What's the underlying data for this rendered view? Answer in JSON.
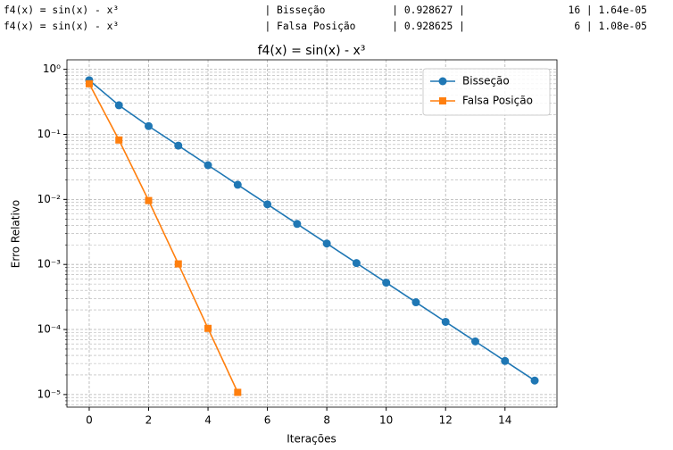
{
  "header": {
    "lines": [
      "f4(x) = sin(x) - x³                        | Bisseção           | 0.928627 |                 16 | 1.64e-05",
      "f4(x) = sin(x) - x³                        | Falsa Posição      | 0.928625 |                  6 | 1.08e-05"
    ]
  },
  "chart_data": {
    "type": "line",
    "title": "f4(x) = sin(x) - x³",
    "xlabel": "Iterações",
    "ylabel": "Erro Relativo",
    "yscale": "log",
    "grid": true,
    "legend": "upper right",
    "xlim": [
      -0.75,
      15.75
    ],
    "xticks": [
      0,
      2,
      4,
      6,
      8,
      10,
      12,
      14
    ],
    "ylim": [
      1.4,
      6.4e-06
    ],
    "yticks": [
      {
        "value": 1,
        "label": "10⁰"
      },
      {
        "value": 0.1,
        "label": "10⁻¹"
      },
      {
        "value": 0.01,
        "label": "10⁻²"
      },
      {
        "value": 0.001,
        "label": "10⁻³"
      },
      {
        "value": 0.0001,
        "label": "10⁻⁴"
      },
      {
        "value": 1e-05,
        "label": "10⁻⁵"
      }
    ],
    "yminorticks": [
      7e-06,
      8e-06,
      9e-06,
      2e-05,
      3e-05,
      4e-05,
      5e-05,
      6e-05,
      7e-05,
      8e-05,
      9e-05,
      0.0002,
      0.0003,
      0.0004,
      0.0005,
      0.0006,
      0.0007,
      0.0008,
      0.0009,
      0.002,
      0.003,
      0.004,
      0.005,
      0.006,
      0.007,
      0.008,
      0.009,
      0.02,
      0.03,
      0.04,
      0.05,
      0.06,
      0.07,
      0.08,
      0.09,
      0.2,
      0.3,
      0.4,
      0.5,
      0.6,
      0.7,
      0.8,
      0.9
    ],
    "series": [
      {
        "name": "Bisseção",
        "color": "#1f77b4",
        "marker": "circle",
        "x": [
          0,
          1,
          2,
          3,
          4,
          5,
          6,
          7,
          8,
          9,
          10,
          11,
          12,
          13,
          14,
          15
        ],
        "values": [
          0.68,
          0.28,
          0.134,
          0.0672,
          0.0336,
          0.0168,
          0.0084,
          0.0042,
          0.0021,
          0.00105,
          0.000525,
          0.000262,
          0.000131,
          6.56e-05,
          3.28e-05,
          1.64e-05
        ]
      },
      {
        "name": "Falsa Posição",
        "color": "#ff7f0e",
        "marker": "square",
        "x": [
          0,
          1,
          2,
          3,
          4,
          5
        ],
        "values": [
          0.6,
          0.082,
          0.0096,
          0.00102,
          0.000104,
          1.08e-05
        ]
      }
    ]
  }
}
